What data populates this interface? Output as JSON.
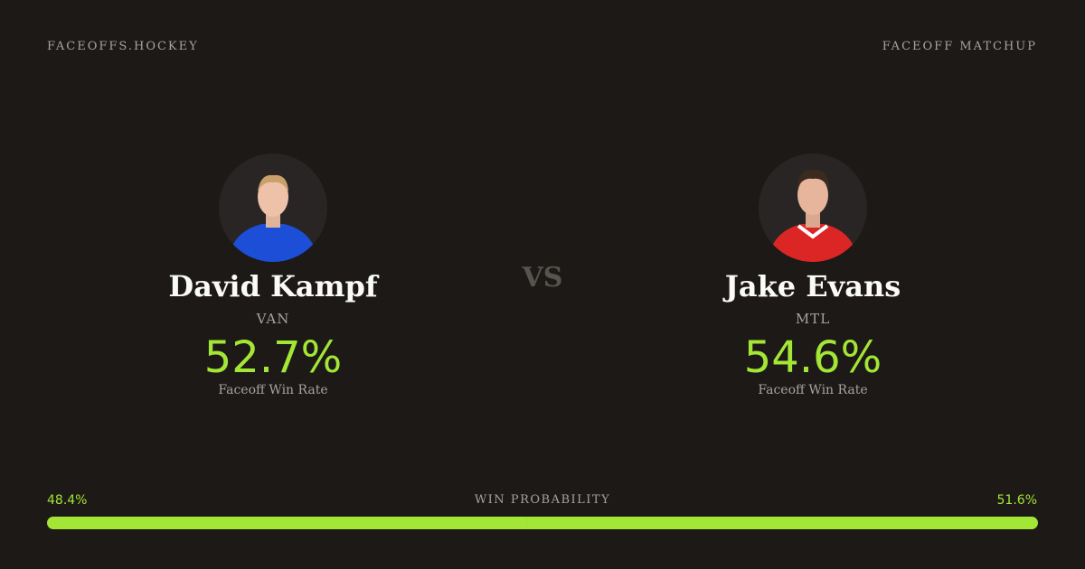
{
  "header": {
    "brand": "FACEOFFS.HOCKEY",
    "label": "FACEOFF MATCHUP"
  },
  "players": [
    {
      "name": "David Kampf",
      "team": "VAN",
      "rate": "52.7%",
      "rate_label": "Faceoff Win Rate"
    },
    {
      "name": "Jake Evans",
      "team": "MTL",
      "rate": "54.6%",
      "rate_label": "Faceoff Win Rate"
    }
  ],
  "versus": "VS",
  "win_probability": {
    "label": "WIN PROBABILITY",
    "left": {
      "value": 48.4,
      "label": "48.4%"
    },
    "right": {
      "value": 51.6,
      "label": "51.6%"
    }
  }
}
